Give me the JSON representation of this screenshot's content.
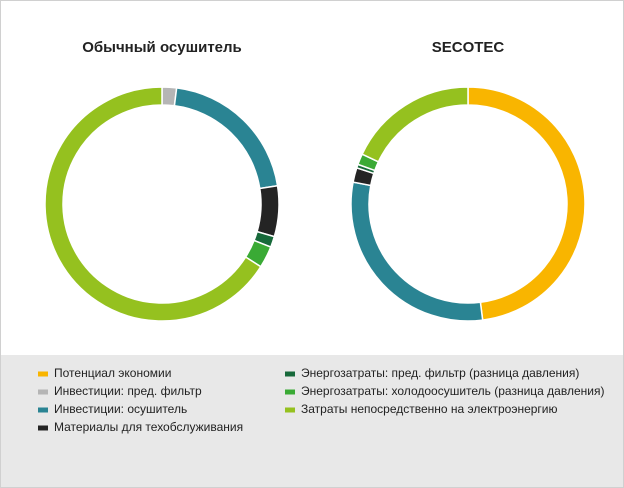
{
  "chart_data": [
    {
      "type": "pie",
      "title": "Обычный осушитель",
      "categories": [
        "Потенциал экономии",
        "Инвестиции: пред. фильтр",
        "Инвестиции: осушитель",
        "Материалы для техобслуживания",
        "Энергозатраты: пред. фильтр (разница давления)",
        "Энергозатраты: холодоосушитель (разница давления)",
        "Затраты непосредственно на электроэнергию"
      ],
      "values": [
        0,
        2,
        20.5,
        7,
        1.5,
        3,
        66
      ],
      "colors": [
        "#f9b500",
        "#b5b5b5",
        "#2a8493",
        "#242424",
        "#17693a",
        "#3aaa35",
        "#95c11f"
      ]
    },
    {
      "type": "pie",
      "title": "SECOTEC",
      "categories": [
        "Потенциал экономии",
        "Инвестиции: пред. фильтр",
        "Инвестиции: осушитель",
        "Материалы для техобслуживания",
        "Энергозатраты: пред. фильтр (разница давления)",
        "Энергозатраты: холодоосушитель (разница давления)",
        "Затраты непосредственно на электроэнергию"
      ],
      "values": [
        48,
        0,
        30,
        2,
        0.5,
        1.5,
        18
      ],
      "colors": [
        "#f9b500",
        "#b5b5b5",
        "#2a8493",
        "#242424",
        "#17693a",
        "#3aaa35",
        "#95c11f"
      ]
    }
  ]
}
